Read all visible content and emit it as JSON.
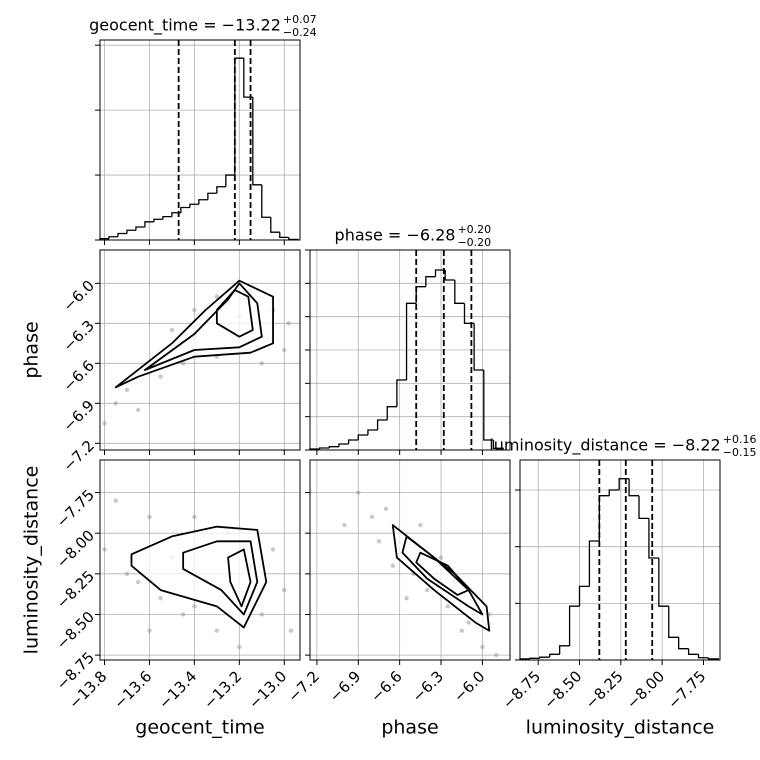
{
  "chart_data": [
    {
      "type": "histogram",
      "title": {
        "text": "geocent_time = −13.22",
        "upper": "+0.07",
        "lower": "−0.24"
      },
      "bins": [
        -13.82,
        -13.78,
        -13.74,
        -13.7,
        -13.66,
        -13.62,
        -13.58,
        -13.54,
        -13.5,
        -13.46,
        -13.42,
        -13.38,
        -13.34,
        -13.3,
        -13.26,
        -13.22,
        -13.18,
        -13.14,
        -13.1,
        -13.06,
        -13.02,
        -12.98,
        -12.94
      ],
      "counts": [
        0.02,
        0.05,
        0.1,
        0.15,
        0.2,
        0.28,
        0.32,
        0.36,
        0.42,
        0.5,
        0.55,
        0.62,
        0.72,
        0.82,
        1.0,
        2.8,
        2.2,
        0.85,
        0.35,
        0.12,
        0.04,
        0.01
      ],
      "quantiles": [
        -13.47,
        -13.22,
        -13.15
      ],
      "xlim": [
        -13.82,
        -12.93
      ],
      "xticks": [
        -13.8,
        -13.6,
        -13.4,
        -13.2,
        -13.0
      ],
      "ylim": [
        0,
        3.08
      ],
      "yticks": [
        0,
        1,
        2,
        3
      ],
      "grid": true,
      "color": "#000000"
    },
    {
      "type": "scatter",
      "ylabel": "phase",
      "x": [
        -13.75,
        -13.7,
        -13.65,
        -13.6,
        -13.55,
        -13.5,
        -13.45,
        -13.4,
        -13.35,
        -13.3,
        -13.25,
        -13.2,
        -13.15,
        -13.1,
        -13.05,
        -13.0,
        -13.3,
        -13.4,
        -13.8,
        -13.1,
        -12.98,
        -13.5
      ],
      "y": [
        -6.9,
        -6.8,
        -6.95,
        -6.6,
        -6.7,
        -6.5,
        -6.6,
        -6.4,
        -6.3,
        -6.55,
        -6.15,
        -6.25,
        -6.05,
        -6.4,
        -6.2,
        -6.5,
        -6.1,
        -6.2,
        -7.05,
        -6.6,
        -6.3,
        -6.35
      ],
      "contours": [
        {
          "x": [
            -13.75,
            -13.5,
            -13.35,
            -13.2,
            -13.05,
            -13.05,
            -13.15,
            -13.4,
            -13.65
          ],
          "y": [
            -6.78,
            -6.45,
            -6.2,
            -5.98,
            -6.1,
            -6.45,
            -6.52,
            -6.55,
            -6.7
          ]
        },
        {
          "x": [
            -13.62,
            -13.4,
            -13.25,
            -13.2,
            -13.12,
            -13.1,
            -13.2,
            -13.4
          ],
          "y": [
            -6.65,
            -6.38,
            -6.12,
            -6.0,
            -6.15,
            -6.4,
            -6.48,
            -6.5
          ]
        },
        {
          "x": [
            -13.3,
            -13.22,
            -13.16,
            -13.14,
            -13.2,
            -13.3
          ],
          "y": [
            -6.2,
            -6.05,
            -6.1,
            -6.35,
            -6.4,
            -6.3
          ]
        }
      ],
      "xlim": [
        -13.82,
        -12.93
      ],
      "xticks": [
        -13.8,
        -13.6,
        -13.4,
        -13.2,
        -13.0
      ],
      "ylim": [
        -7.25,
        -5.75
      ],
      "yticks": [
        {
          "value": -7.2,
          "label": "−7.2"
        },
        {
          "value": -6.9,
          "label": "−6.9"
        },
        {
          "value": -6.6,
          "label": "−6.6"
        },
        {
          "value": -6.3,
          "label": "−6.3"
        },
        {
          "value": -6.0,
          "label": "−6.0"
        }
      ],
      "grid": true,
      "color": "#888888"
    },
    {
      "type": "histogram",
      "title": {
        "text": "phase = −6.28",
        "upper": "+0.20",
        "lower": "−0.20"
      },
      "bins": [
        -7.25,
        -7.18,
        -7.11,
        -7.04,
        -6.97,
        -6.9,
        -6.83,
        -6.76,
        -6.69,
        -6.62,
        -6.55,
        -6.48,
        -6.41,
        -6.34,
        -6.27,
        -6.2,
        -6.13,
        -6.06,
        -5.99,
        -5.92,
        -5.85
      ],
      "counts": [
        0.03,
        0.06,
        0.1,
        0.18,
        0.3,
        0.45,
        0.6,
        0.9,
        1.3,
        2.1,
        4.4,
        4.9,
        5.2,
        5.4,
        5.1,
        4.4,
        3.8,
        2.4,
        0.3,
        0.05
      ],
      "quantiles": [
        -6.48,
        -6.28,
        -6.08
      ],
      "xlim": [
        -7.25,
        -5.8
      ],
      "xticks": [
        -7.2,
        -6.9,
        -6.6,
        -6.3,
        -6.0
      ],
      "ylim": [
        0,
        6
      ],
      "yticks": [
        0,
        1,
        2,
        3,
        4,
        5,
        6
      ],
      "grid": true,
      "color": "#000000"
    },
    {
      "type": "scatter",
      "xlabel": "geocent_time",
      "ylabel": "luminosity_distance",
      "x": [
        -13.8,
        -13.7,
        -13.6,
        -13.55,
        -13.5,
        -13.45,
        -13.4,
        -13.35,
        -13.3,
        -13.25,
        -13.2,
        -13.15,
        -13.1,
        -13.05,
        -13.0,
        -12.97,
        -13.75,
        -13.6,
        -13.4,
        -13.65
      ],
      "y": [
        -8.1,
        -8.25,
        -7.9,
        -8.4,
        -8.15,
        -8.5,
        -7.9,
        -8.3,
        -8.6,
        -8.0,
        -8.7,
        -8.2,
        -8.5,
        -8.1,
        -8.35,
        -8.6,
        -7.8,
        -8.6,
        -8.45,
        -8.3
      ],
      "contours": [
        {
          "x": [
            -13.68,
            -13.5,
            -13.3,
            -13.12,
            -13.08,
            -13.18,
            -13.3,
            -13.55,
            -13.68
          ],
          "y": [
            -8.13,
            -8.02,
            -7.96,
            -7.98,
            -8.3,
            -8.58,
            -8.45,
            -8.35,
            -8.2
          ]
        },
        {
          "x": [
            -13.45,
            -13.3,
            -13.15,
            -13.12,
            -13.18,
            -13.28,
            -13.45
          ],
          "y": [
            -8.12,
            -8.05,
            -8.05,
            -8.3,
            -8.5,
            -8.35,
            -8.22
          ]
        },
        {
          "x": [
            -13.25,
            -13.18,
            -13.15,
            -13.19,
            -13.24
          ],
          "y": [
            -8.15,
            -8.1,
            -8.3,
            -8.45,
            -8.3
          ]
        }
      ],
      "xlim": [
        -13.82,
        -12.93
      ],
      "xticks": [
        {
          "value": -13.8,
          "label": "−13.8"
        },
        {
          "value": -13.6,
          "label": "−13.6"
        },
        {
          "value": -13.4,
          "label": "−13.4"
        },
        {
          "value": -13.2,
          "label": "−13.2"
        },
        {
          "value": -13.0,
          "label": "−13.0"
        }
      ],
      "ylim": [
        -8.78,
        -7.55
      ],
      "yticks": [
        {
          "value": -8.75,
          "label": "−8.75"
        },
        {
          "value": -8.5,
          "label": "−8.50"
        },
        {
          "value": -8.25,
          "label": "−8.25"
        },
        {
          "value": -8.0,
          "label": "−8.00"
        },
        {
          "value": -7.75,
          "label": "−7.75"
        }
      ],
      "grid": true,
      "color": "#888888"
    },
    {
      "type": "scatter",
      "xlabel": "phase",
      "x": [
        -6.9,
        -6.8,
        -6.75,
        -6.7,
        -6.65,
        -6.6,
        -6.5,
        -6.45,
        -6.4,
        -6.3,
        -6.25,
        -6.2,
        -6.1,
        -6.05,
        -6.0,
        -5.95,
        -7.0,
        -6.55,
        -6.15,
        -5.9
      ],
      "y": [
        -7.75,
        -7.9,
        -8.05,
        -7.85,
        -8.2,
        -8.0,
        -8.25,
        -7.95,
        -8.35,
        -8.15,
        -8.45,
        -8.3,
        -8.55,
        -8.4,
        -8.7,
        -8.5,
        -7.95,
        -8.4,
        -8.6,
        -8.75
      ],
      "contours": [
        {
          "x": [
            -6.65,
            -6.5,
            -6.2,
            -5.97,
            -5.95,
            -6.05,
            -6.35,
            -6.62
          ],
          "y": [
            -7.95,
            -8.05,
            -8.25,
            -8.45,
            -8.6,
            -8.55,
            -8.35,
            -8.15
          ]
        },
        {
          "x": [
            -6.55,
            -6.35,
            -6.1,
            -6.0,
            -6.1,
            -6.4,
            -6.58
          ],
          "y": [
            -8.02,
            -8.15,
            -8.35,
            -8.5,
            -8.45,
            -8.28,
            -8.12
          ]
        },
        {
          "x": [
            -6.45,
            -6.25,
            -6.1,
            -6.18,
            -6.35,
            -6.48
          ],
          "y": [
            -8.12,
            -8.2,
            -8.35,
            -8.38,
            -8.28,
            -8.18
          ]
        }
      ],
      "xlim": [
        -7.25,
        -5.8
      ],
      "xticks": [
        {
          "value": -7.2,
          "label": "−7.2"
        },
        {
          "value": -6.9,
          "label": "−6.9"
        },
        {
          "value": -6.6,
          "label": "−6.6"
        },
        {
          "value": -6.3,
          "label": "−6.3"
        },
        {
          "value": -6.0,
          "label": "−6.0"
        }
      ],
      "ylim": [
        -8.78,
        -7.55
      ],
      "yticks": [
        -8.75,
        -8.5,
        -8.25,
        -8.0,
        -7.75
      ],
      "grid": true,
      "color": "#888888"
    },
    {
      "type": "histogram",
      "xlabel": "luminosity_distance",
      "title": {
        "text": "luminosity_distance = −8.22",
        "upper": "+0.16",
        "lower": "−0.15"
      },
      "bins": [
        -8.86,
        -8.8,
        -8.74,
        -8.68,
        -8.62,
        -8.56,
        -8.5,
        -8.44,
        -8.38,
        -8.32,
        -8.26,
        -8.2,
        -8.14,
        -8.08,
        -8.02,
        -7.96,
        -7.9,
        -7.84,
        -7.78,
        -7.72,
        -7.66
      ],
      "counts": [
        0.02,
        0.03,
        0.05,
        0.1,
        0.25,
        0.95,
        1.3,
        2.1,
        2.9,
        3.0,
        3.2,
        2.9,
        2.5,
        1.8,
        0.95,
        0.4,
        0.2,
        0.1,
        0.04,
        0.02
      ],
      "quantiles": [
        -8.38,
        -8.22,
        -8.06
      ],
      "xlim": [
        -8.86,
        -7.65
      ],
      "xticks": [
        {
          "value": -8.75,
          "label": "−8.75"
        },
        {
          "value": -8.5,
          "label": "−8.50"
        },
        {
          "value": -8.25,
          "label": "−8.25"
        },
        {
          "value": -8.0,
          "label": "−8.00"
        },
        {
          "value": -7.75,
          "label": "−7.75"
        }
      ],
      "ylim": [
        0,
        3.53
      ],
      "yticks": [
        0,
        1,
        2,
        3
      ],
      "grid": true,
      "color": "#000000"
    }
  ]
}
